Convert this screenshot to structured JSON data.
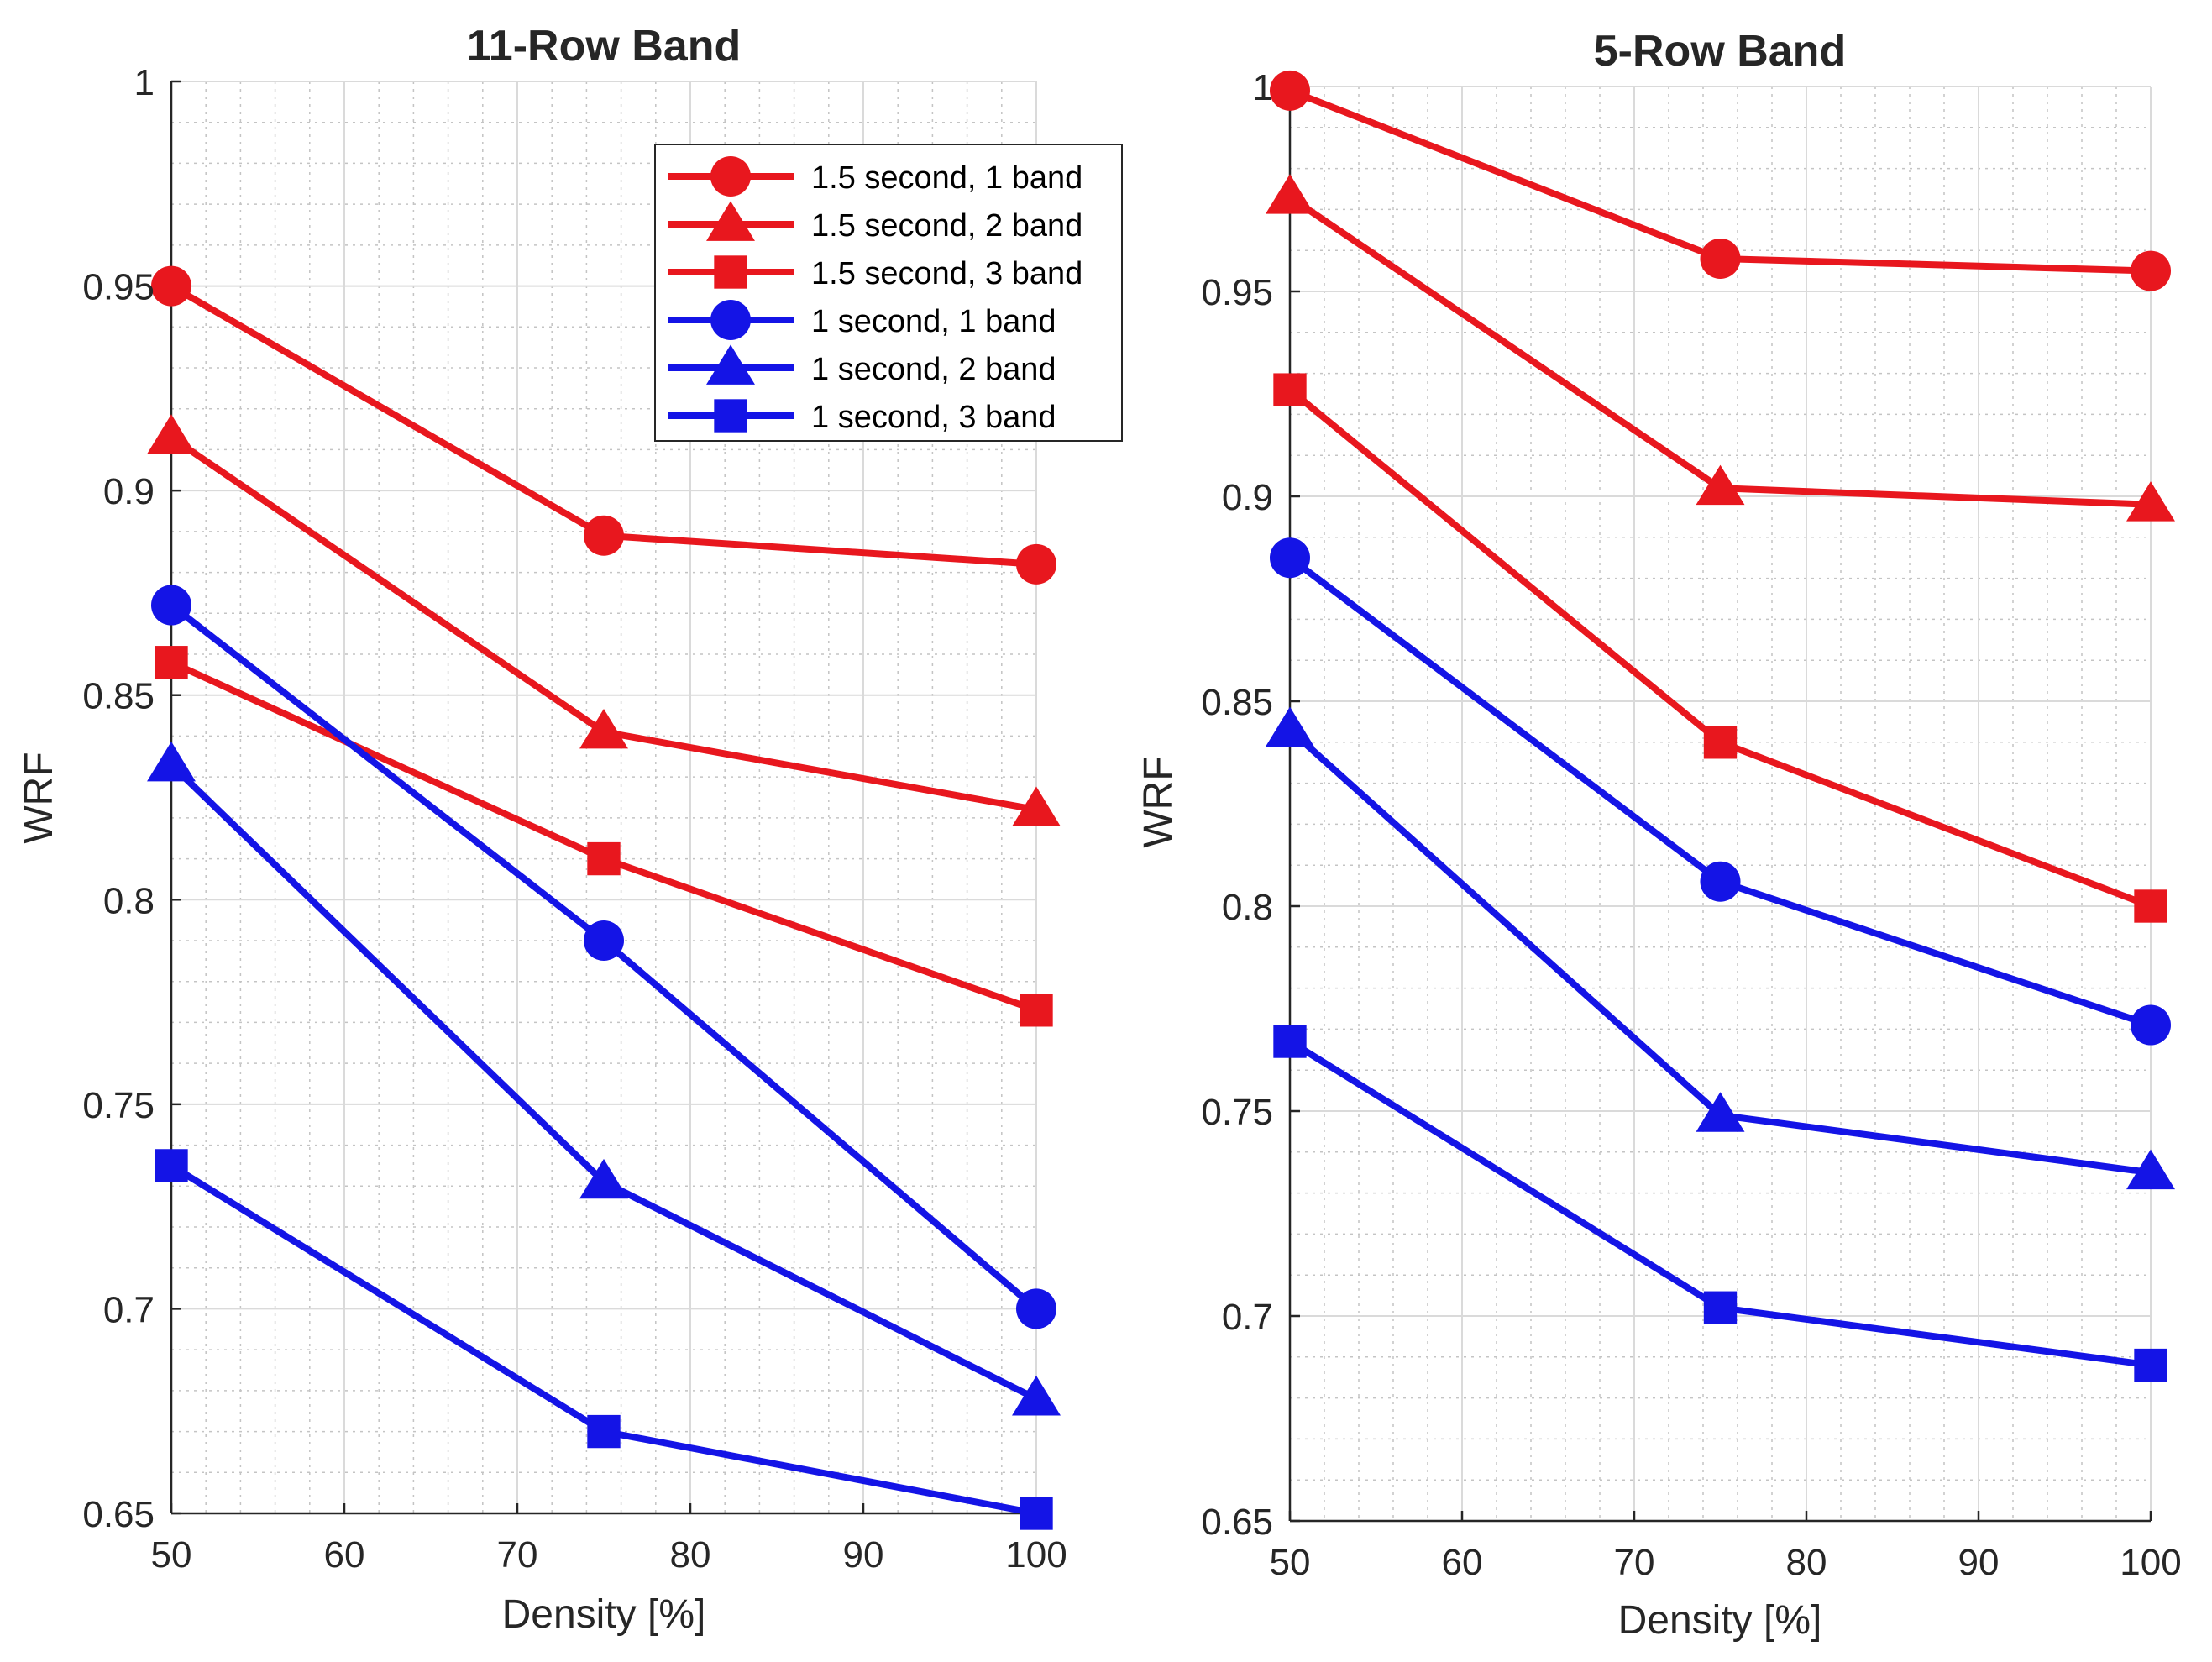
{
  "colors": {
    "red": "#e8171e",
    "blue": "#1414e6",
    "grid_major": "#dadada",
    "grid_minor": "#c4c4c4",
    "axis": "#262626"
  },
  "chart_data": [
    {
      "type": "line",
      "title": "11-Row Band",
      "xlabel": "Density [%]",
      "ylabel": "WRF",
      "xlim": [
        50,
        100
      ],
      "ylim": [
        0.65,
        1
      ],
      "xticks": [
        50,
        60,
        70,
        80,
        90,
        100
      ],
      "xtick_labels": [
        "50",
        "60",
        "70",
        "80",
        "90",
        "100"
      ],
      "yticks": [
        0.65,
        0.7,
        0.75,
        0.8,
        0.85,
        0.9,
        0.95,
        1
      ],
      "ytick_labels": [
        "0.65",
        "0.7",
        "0.75",
        "0.8",
        "0.85",
        "0.9",
        "0.95",
        "1"
      ],
      "grid": true,
      "legend": true,
      "legend_position": "top-right",
      "x": [
        50,
        75,
        100
      ],
      "series": [
        {
          "name": "1.5 second, 1 band",
          "color": "red",
          "marker": "circle",
          "values": [
            0.95,
            0.889,
            0.882
          ]
        },
        {
          "name": "1.5 second, 2 band",
          "color": "red",
          "marker": "triangle",
          "values": [
            0.913,
            0.841,
            0.822
          ]
        },
        {
          "name": "1.5 second, 3 band",
          "color": "red",
          "marker": "square",
          "values": [
            0.858,
            0.81,
            0.773
          ]
        },
        {
          "name": "1 second, 1 band",
          "color": "blue",
          "marker": "circle",
          "values": [
            0.872,
            0.79,
            0.7
          ]
        },
        {
          "name": "1 second, 2 band",
          "color": "blue",
          "marker": "triangle",
          "values": [
            0.833,
            0.731,
            0.678
          ]
        },
        {
          "name": "1 second, 3 band",
          "color": "blue",
          "marker": "square",
          "values": [
            0.735,
            0.67,
            0.65
          ]
        }
      ]
    },
    {
      "type": "line",
      "title": "5-Row Band",
      "xlabel": "Density [%]",
      "ylabel": "WRF",
      "xlim": [
        50,
        100
      ],
      "ylim": [
        0.65,
        1
      ],
      "xticks": [
        50,
        60,
        70,
        80,
        90,
        100
      ],
      "xtick_labels": [
        "50",
        "60",
        "70",
        "80",
        "90",
        "100"
      ],
      "yticks": [
        0.65,
        0.7,
        0.75,
        0.8,
        0.85,
        0.9,
        0.95,
        1
      ],
      "ytick_labels": [
        "0.65",
        "0.7",
        "0.75",
        "0.8",
        "0.85",
        "0.9",
        "0.95",
        "1"
      ],
      "grid": true,
      "legend": false,
      "x": [
        50,
        75,
        100
      ],
      "series": [
        {
          "name": "1.5 second, 1 band",
          "color": "red",
          "marker": "circle",
          "values": [
            0.999,
            0.958,
            0.955
          ]
        },
        {
          "name": "1.5 second, 2 band",
          "color": "red",
          "marker": "triangle",
          "values": [
            0.973,
            0.902,
            0.898
          ]
        },
        {
          "name": "1.5 second, 3 band",
          "color": "red",
          "marker": "square",
          "values": [
            0.926,
            0.84,
            0.8
          ]
        },
        {
          "name": "1 second, 1 band",
          "color": "blue",
          "marker": "circle",
          "values": [
            0.885,
            0.806,
            0.771
          ]
        },
        {
          "name": "1 second, 2 band",
          "color": "blue",
          "marker": "triangle",
          "values": [
            0.843,
            0.749,
            0.735
          ]
        },
        {
          "name": "1 second, 3 band",
          "color": "blue",
          "marker": "square",
          "values": [
            0.767,
            0.702,
            0.688
          ]
        }
      ]
    }
  ]
}
